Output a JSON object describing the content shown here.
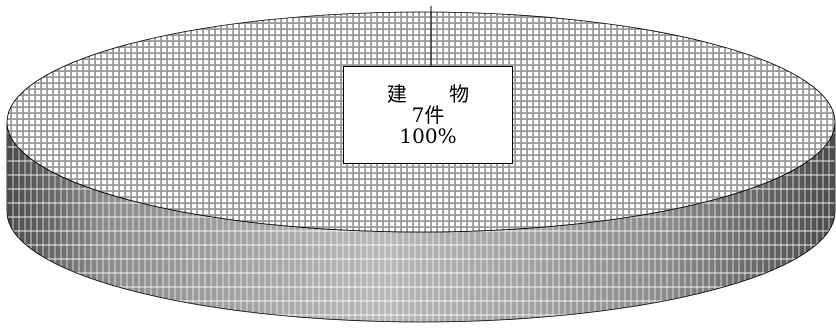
{
  "chart_data": {
    "type": "pie",
    "style": "3d",
    "slices": [
      {
        "label": "建 物",
        "count_label": "7件",
        "percent_label": "100%",
        "value": 7,
        "percent": 100
      }
    ]
  },
  "colors": {
    "top_base": "#9a9a9a",
    "top_grid": "#ffffff",
    "side_dark": "#4a4a4a",
    "side_light": "#e2e2e2",
    "outline": "#000000"
  }
}
